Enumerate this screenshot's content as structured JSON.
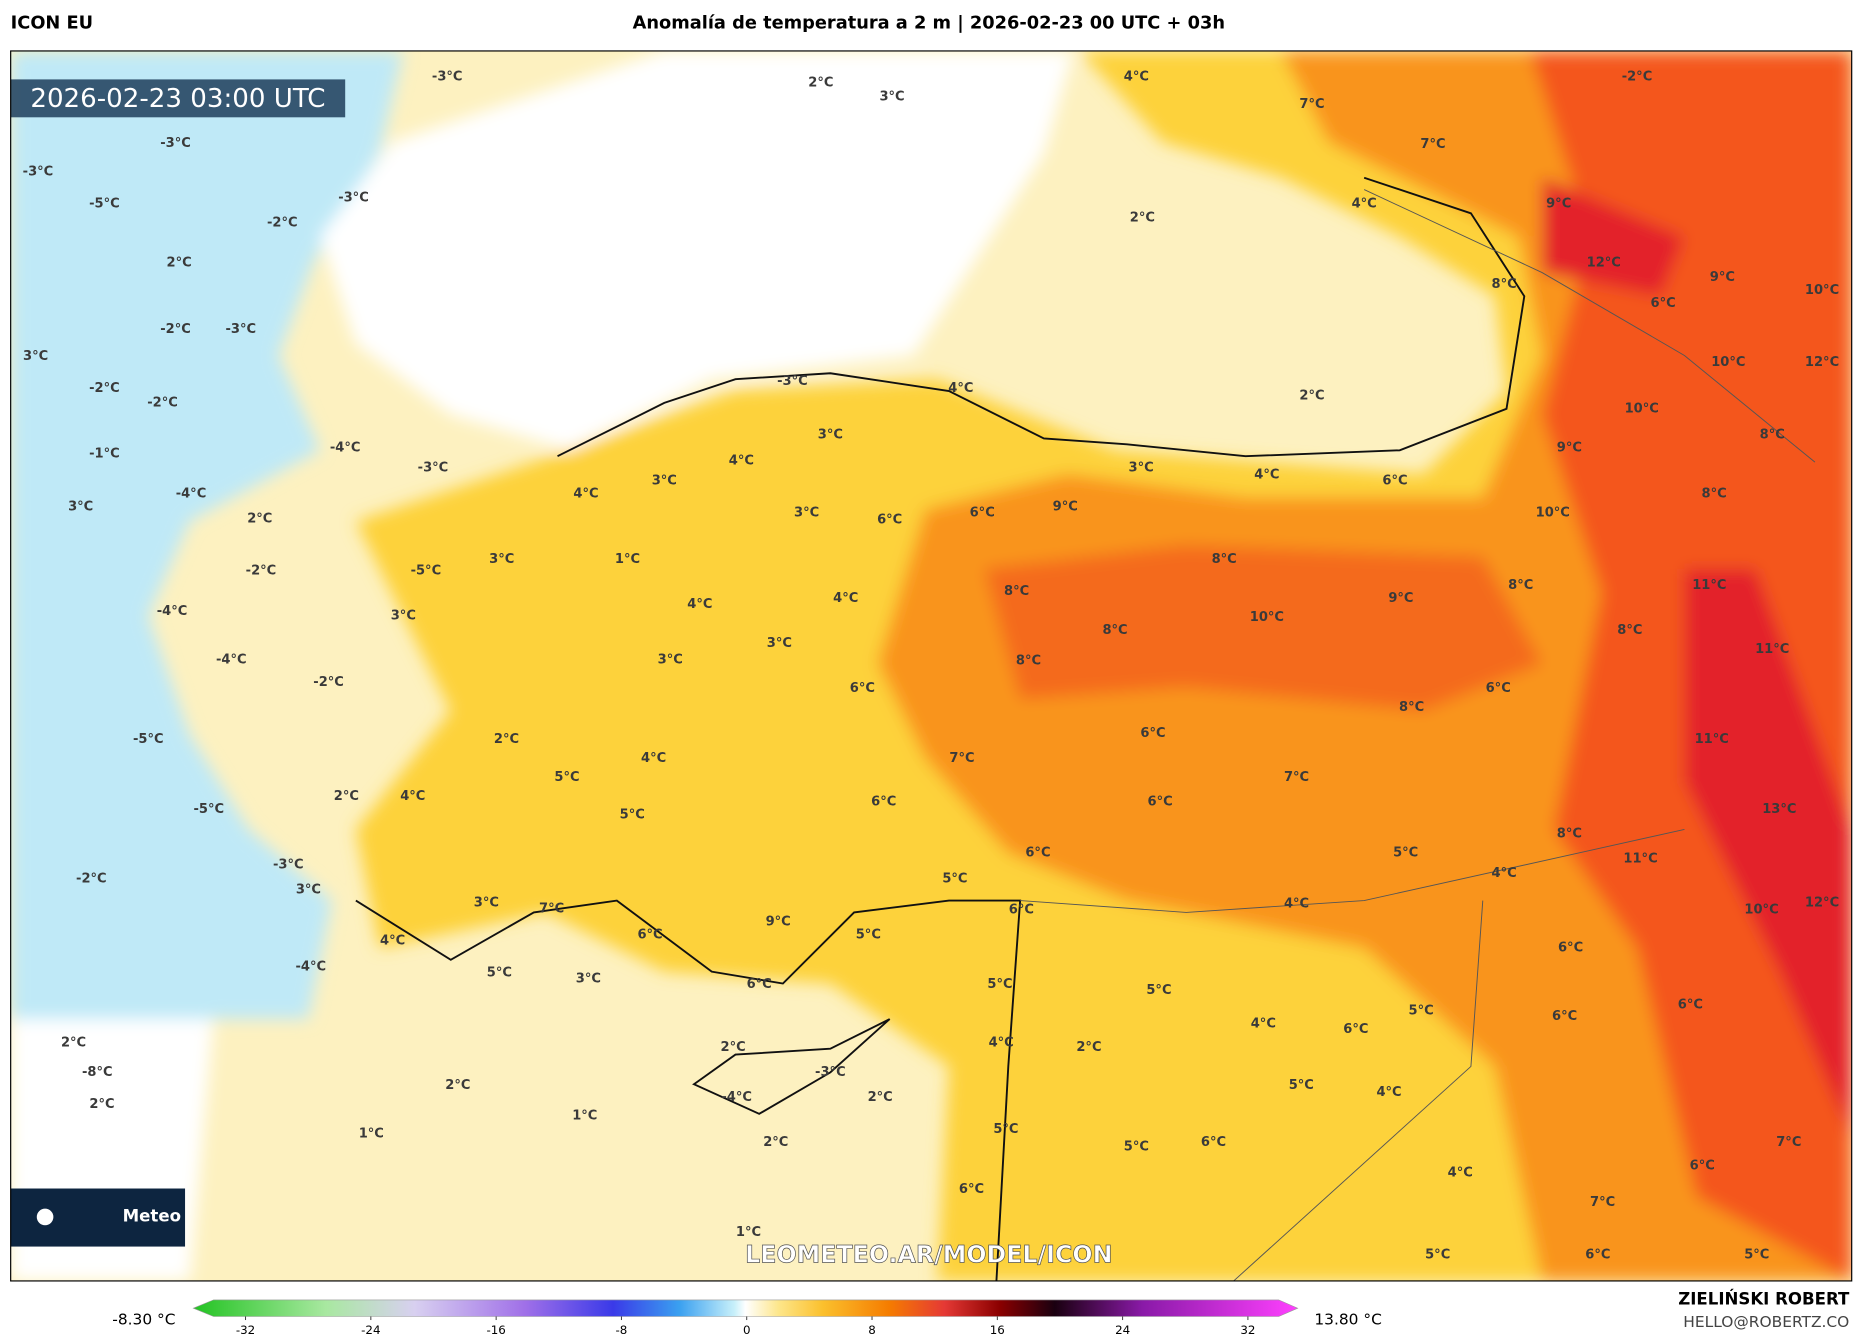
{
  "header": {
    "model": "ICON EU",
    "title": "Anomalía de temperatura a 2 m | 2026-02-23 00 UTC + 03h"
  },
  "map": {
    "timestamp": "2026-02-23 03:00 UTC",
    "watermark": "LEOMETEO.AR/MODEL/ICON",
    "logo": "Meteo",
    "labels": [
      "-3°C",
      "2°C",
      "3°C",
      "4°C",
      "7°C",
      "-2°C",
      "-3°C",
      "-3°C",
      "7°C",
      "-5°C",
      "-3°C",
      "-2°C",
      "2°C",
      "4°C",
      "9°C",
      "2°C",
      "12°C",
      "9°C",
      "8°C",
      "6°C",
      "10°C",
      "-2°C",
      "-3°C",
      "3°C",
      "-2°C",
      "-2°C",
      "2°C",
      "10°C",
      "12°C",
      "-3°C",
      "4°C",
      "10°C",
      "8°C",
      "-1°C",
      "-4°C",
      "3°C",
      "9°C",
      "-3°C",
      "4°C",
      "3°C",
      "4°C",
      "6°C",
      "8°C",
      "-4°C",
      "4°C",
      "3°C",
      "3°C",
      "3°C",
      "6°C",
      "6°C",
      "9°C",
      "10°C",
      "2°C",
      "3°C",
      "1°C",
      "8°C",
      "-2°C",
      "-5°C",
      "11°C",
      "8°C",
      "9°C",
      "8°C",
      "4°C",
      "4°C",
      "-4°C",
      "3°C",
      "10°C",
      "8°C",
      "3°C",
      "8°C",
      "11°C",
      "-4°C",
      "3°C",
      "8°C",
      "-2°C",
      "6°C",
      "6°C",
      "8°C",
      "6°C",
      "-5°C",
      "11°C",
      "2°C",
      "4°C",
      "7°C",
      "5°C",
      "7°C",
      "2°C",
      "4°C",
      "6°C",
      "6°C",
      "5°C",
      "-5°C",
      "13°C",
      "8°C",
      "6°C",
      "5°C",
      "11°C",
      "-3°C",
      "5°C",
      "4°C",
      "-2°C",
      "3°C",
      "3°C",
      "7°C",
      "4°C",
      "6°C",
      "10°C",
      "12°C",
      "9°C",
      "6°C",
      "5°C",
      "4°C",
      "6°C",
      "-4°C",
      "5°C",
      "3°C",
      "6°C",
      "5°C",
      "5°C",
      "6°C",
      "6°C",
      "5°C",
      "4°C",
      "6°C",
      "2°C",
      "-8°C",
      "4°C",
      "2°C",
      "2°C",
      "-3°C",
      "4°C",
      "5°C",
      "2°C",
      "-4°C",
      "2°C",
      "2°C",
      "1°C",
      "1°C",
      "5°C",
      "2°C",
      "5°C",
      "6°C",
      "7°C",
      "4°C",
      "6°C",
      "6°C",
      "7°C",
      "1°C",
      "5°C",
      "6°C",
      "5°C"
    ]
  },
  "colorbar": {
    "min_label": "-8.30 °C",
    "max_label": "13.80 °C",
    "ticks": [
      -32,
      -24,
      -16,
      -8,
      0,
      8,
      16,
      24,
      32
    ]
  },
  "footer": {
    "author": "ZIELIŃSKI ROBERT",
    "email": "HELLO@ROBERTZ.CO"
  }
}
